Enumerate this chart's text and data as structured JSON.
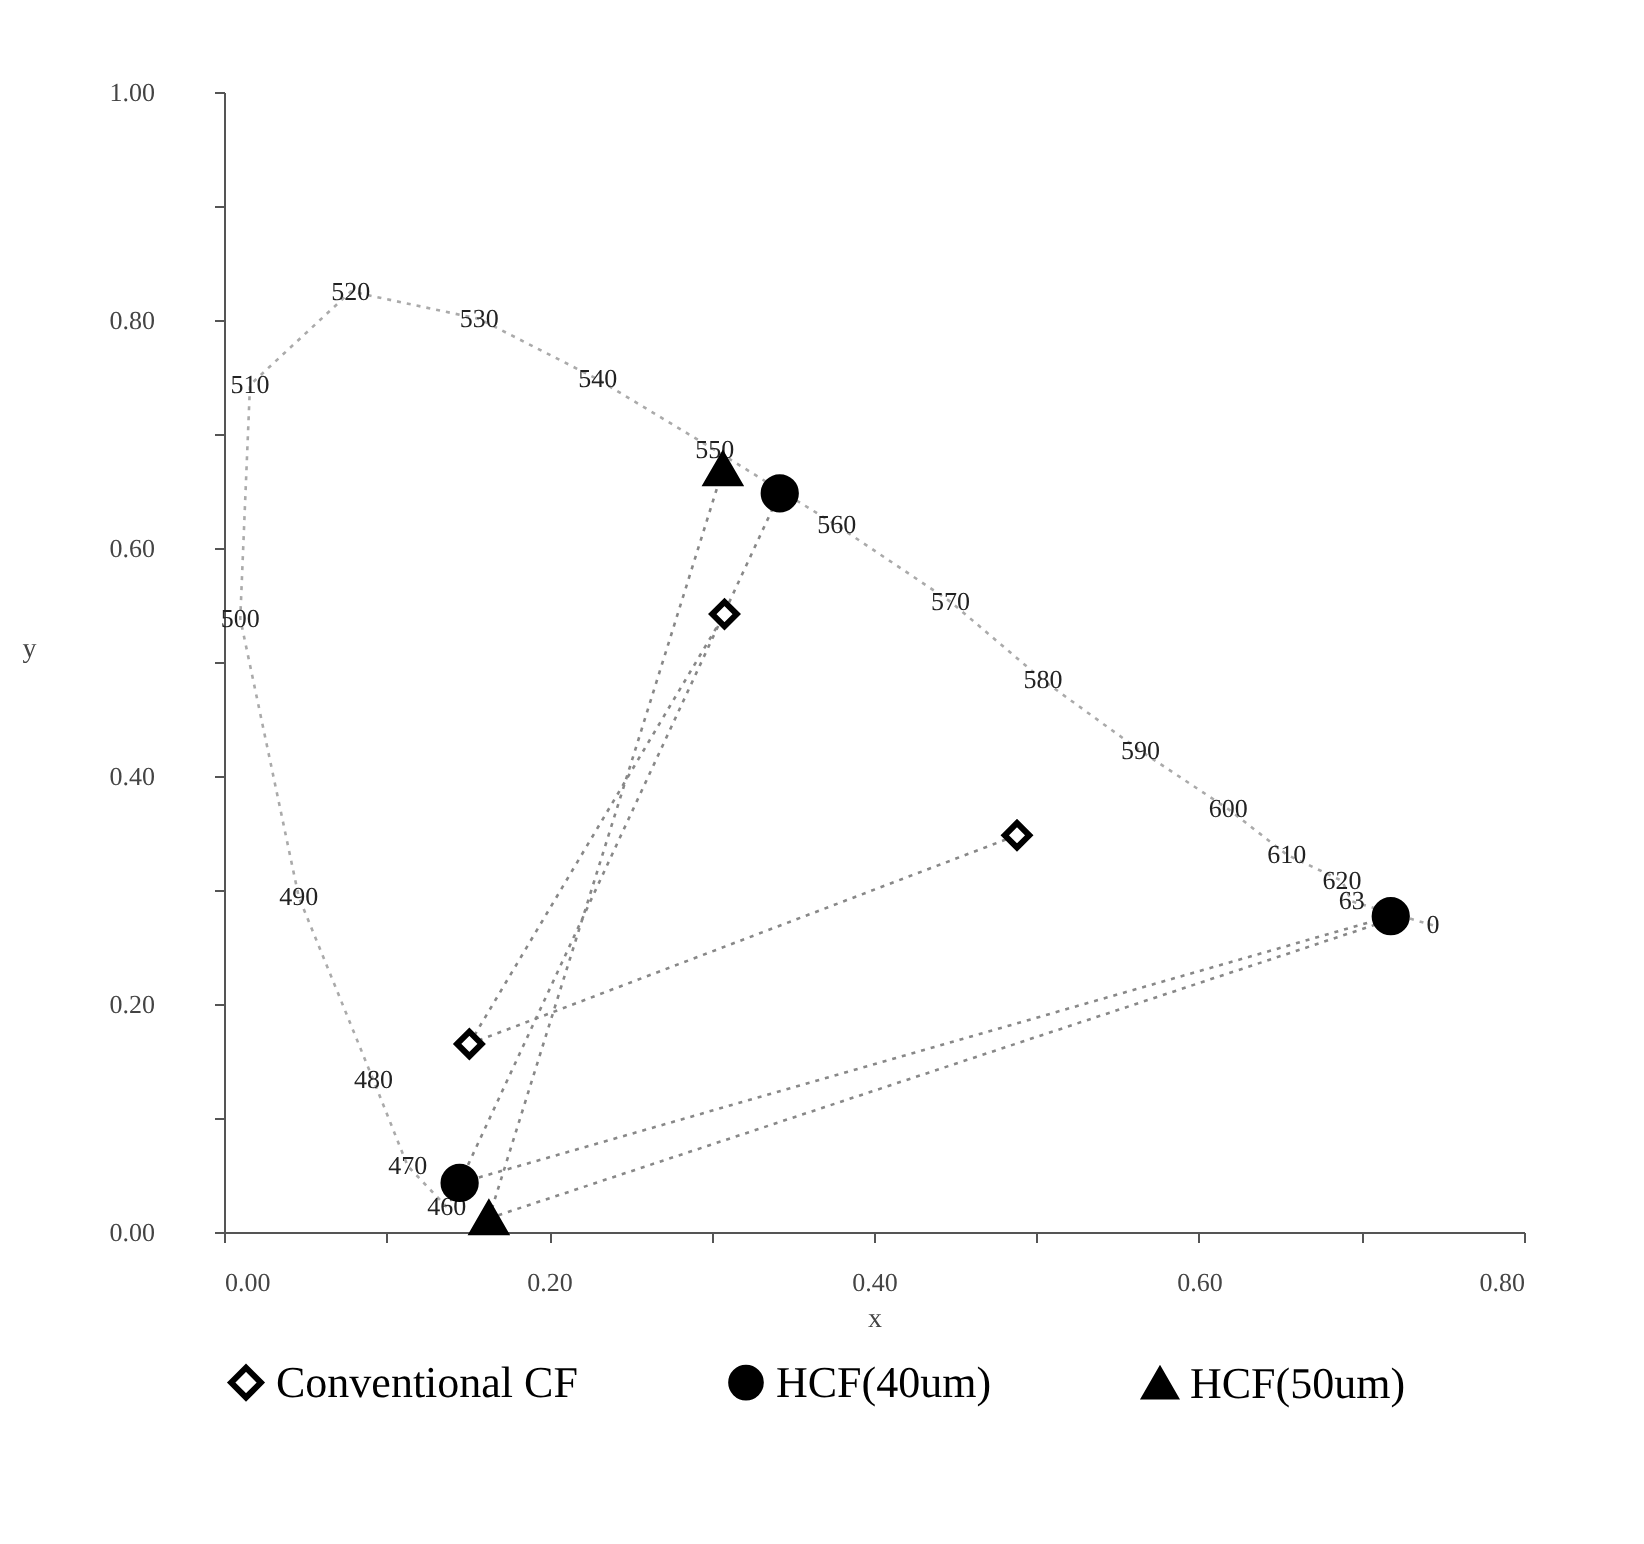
{
  "chart_data": {
    "type": "scatter",
    "xlabel": "x",
    "ylabel": "y",
    "xlim": [
      0,
      0.8
    ],
    "ylim": [
      0,
      1
    ],
    "xticks": [
      {
        "value": 0,
        "label": "0.00"
      },
      {
        "value": 0.1,
        "label": null
      },
      {
        "value": 0.2,
        "label": "0.20"
      },
      {
        "value": 0.3,
        "label": null
      },
      {
        "value": 0.4,
        "label": "0.40"
      },
      {
        "value": 0.5,
        "label": null
      },
      {
        "value": 0.6,
        "label": "0.60"
      },
      {
        "value": 0.7,
        "label": null
      },
      {
        "value": 0.8,
        "label": "0.80"
      }
    ],
    "yticks": [
      {
        "value": 0,
        "label": "0.00"
      },
      {
        "value": 0.1,
        "label": null
      },
      {
        "value": 0.2,
        "label": "0.20"
      },
      {
        "value": 0.3,
        "label": null
      },
      {
        "value": 0.4,
        "label": "0.40"
      },
      {
        "value": 0.5,
        "label": null
      },
      {
        "value": 0.6,
        "label": "0.60"
      },
      {
        "value": 0.7,
        "label": null
      },
      {
        "value": 0.8,
        "label": "0.80"
      },
      {
        "value": 0.9,
        "label": null
      },
      {
        "value": 1,
        "label": "1.00"
      }
    ],
    "grid": false,
    "legend": "bottom",
    "series": [
      {
        "type": "line",
        "line_style": "dotted",
        "color": "#aaaaaa",
        "x": [
          0.744,
          0.694,
          0.688,
          0.654,
          0.618,
          0.564,
          0.504,
          0.447,
          0.377,
          0.302,
          0.23,
          0.157,
          0.078,
          0.016,
          0.01,
          0.046,
          0.092,
          0.113,
          0.137
        ],
        "values": [
          0.269,
          0.29,
          0.308,
          0.331,
          0.371,
          0.422,
          0.484,
          0.553,
          0.62,
          0.686,
          0.748,
          0.801,
          0.825,
          0.743,
          0.538,
          0.294,
          0.133,
          0.058,
          0.022
        ]
      },
      {
        "type": "line",
        "line_style": "dotted",
        "color": "#888888",
        "x": [
          0.151,
          0.308
        ],
        "values": [
          0.165,
          0.542
        ]
      },
      {
        "type": "line",
        "line_style": "dotted",
        "color": "#888888",
        "x": [
          0.151,
          0.488
        ],
        "values": [
          0.165,
          0.348
        ]
      },
      {
        "type": "line",
        "line_style": "dotted",
        "color": "#888888",
        "x": [
          0.145,
          0.342
        ],
        "values": [
          0.043,
          0.648
        ]
      },
      {
        "type": "line",
        "line_style": "dotted",
        "color": "#888888",
        "x": [
          0.145,
          0.718
        ],
        "values": [
          0.043,
          0.277
        ]
      },
      {
        "type": "line",
        "line_style": "dotted",
        "color": "#888888",
        "x": [
          0.163,
          0.307
        ],
        "values": [
          0.012,
          0.669
        ]
      },
      {
        "type": "line",
        "line_style": "dotted",
        "color": "#888888",
        "x": [
          0.163,
          0.72
        ],
        "values": [
          0.012,
          0.275
        ]
      },
      {
        "name": "Conventional CF",
        "marker": "diamond",
        "color": "#000000",
        "x": [
          0.151,
          0.308,
          0.488
        ],
        "values": [
          0.165,
          0.542,
          0.348
        ]
      },
      {
        "name": "HCF(40um)",
        "marker": "circle",
        "color": "#000000",
        "x": [
          0.145,
          0.342,
          0.718
        ],
        "values": [
          0.043,
          0.648,
          0.277
        ]
      },
      {
        "name": "HCF(50um)",
        "marker": "triangle",
        "color": "#000000",
        "x": [
          0.163,
          0.307
        ],
        "values": [
          0.012,
          0.669
        ]
      }
    ],
    "annotations": [
      {
        "text": "0",
        "x": 0.744,
        "y": 0.269
      },
      {
        "text": "63",
        "x": 0.694,
        "y": 0.29
      },
      {
        "text": "620",
        "x": 0.688,
        "y": 0.308
      },
      {
        "text": "610",
        "x": 0.654,
        "y": 0.331
      },
      {
        "text": "600",
        "x": 0.618,
        "y": 0.371
      },
      {
        "text": "590",
        "x": 0.564,
        "y": 0.422
      },
      {
        "text": "580",
        "x": 0.504,
        "y": 0.484
      },
      {
        "text": "570",
        "x": 0.447,
        "y": 0.553
      },
      {
        "text": "560",
        "x": 0.377,
        "y": 0.62
      },
      {
        "text": "550",
        "x": 0.302,
        "y": 0.686
      },
      {
        "text": "540",
        "x": 0.23,
        "y": 0.748
      },
      {
        "text": "530",
        "x": 0.157,
        "y": 0.801
      },
      {
        "text": "520",
        "x": 0.078,
        "y": 0.825
      },
      {
        "text": "510",
        "x": 0.016,
        "y": 0.743
      },
      {
        "text": "500",
        "x": 0.01,
        "y": 0.538
      },
      {
        "text": "490",
        "x": 0.046,
        "y": 0.294
      },
      {
        "text": "480",
        "x": 0.092,
        "y": 0.133
      },
      {
        "text": "470",
        "x": 0.113,
        "y": 0.058
      },
      {
        "text": "460",
        "x": 0.137,
        "y": 0.022
      }
    ]
  }
}
